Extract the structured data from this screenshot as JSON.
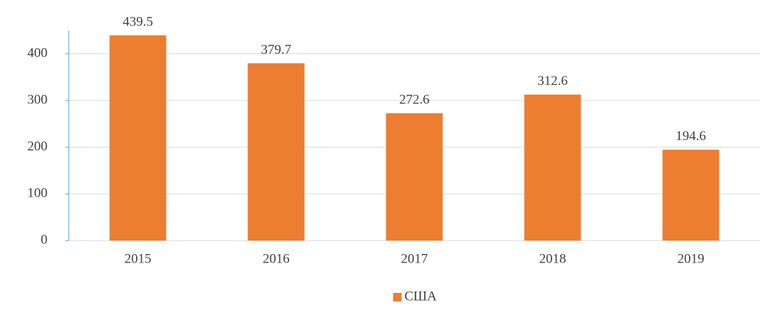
{
  "chart_data": {
    "type": "bar",
    "categories": [
      "2015",
      "2016",
      "2017",
      "2018",
      "2019"
    ],
    "series": [
      {
        "name": "США",
        "color": "#ed7d31",
        "values": [
          439.5,
          379.7,
          272.6,
          312.6,
          194.6
        ]
      }
    ],
    "ylim": [
      0,
      450
    ],
    "yticks": [
      0,
      100,
      200,
      300,
      400
    ],
    "grid": true,
    "legend": "bottom",
    "data_labels": true
  }
}
